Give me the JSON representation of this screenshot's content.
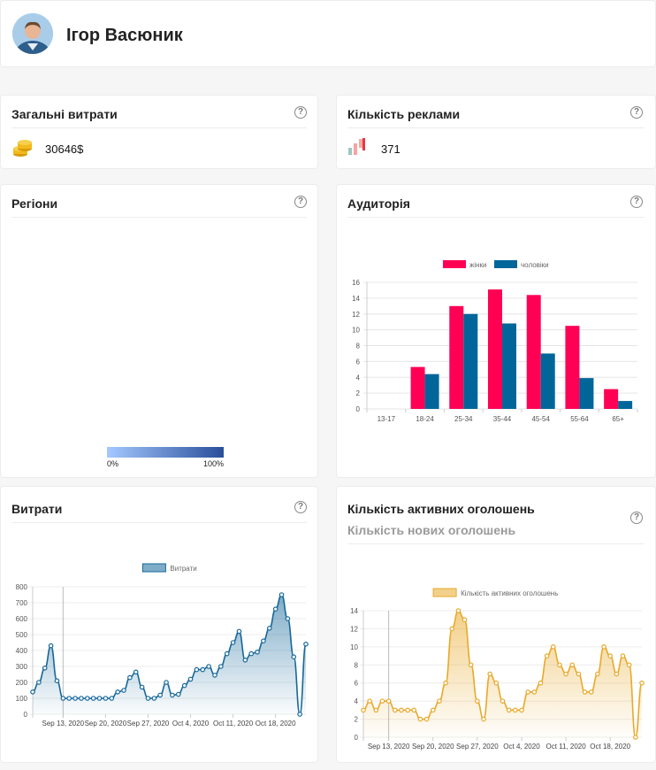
{
  "profile": {
    "name": "Ігор Васюник",
    "avatar_icon": "person-photo-icon"
  },
  "spend_card": {
    "title": "Загальні витрати",
    "value": "30646$",
    "icon": "coins-icon",
    "help_glyph": "?"
  },
  "ads_card": {
    "title": "Кількість реклами",
    "value": "371",
    "icon": "ads-chart-icon",
    "help_glyph": "?"
  },
  "regions_card": {
    "title": "Регіони",
    "help_glyph": "?",
    "legend_min": "0%",
    "legend_max": "100%",
    "colors": {
      "low": "#a4c8ff",
      "high": "#2a4f9a",
      "crimea": "#d9d9d9"
    }
  },
  "audience_card": {
    "title": "Аудиторія",
    "help_glyph": "?"
  },
  "spend_chart_card": {
    "title": "Витрати",
    "help_glyph": "?"
  },
  "active_ads_card": {
    "title": "Кількість активних оголошень",
    "subtitle": "Кількість нових оголошень",
    "help_glyph": "?"
  },
  "chart_data": [
    {
      "type": "bar",
      "categories": [
        "13-17",
        "18-24",
        "25-34",
        "35-44",
        "45-54",
        "55-64",
        "65+"
      ],
      "series": [
        {
          "name": "жінки",
          "color": "#ff0055",
          "values": [
            0,
            5.3,
            13,
            15.1,
            14.4,
            10.5,
            2.5
          ]
        },
        {
          "name": "чоловіки",
          "color": "#006699",
          "values": [
            0,
            4.4,
            12,
            10.8,
            7,
            3.9,
            1
          ]
        }
      ],
      "yticks": [
        0,
        2,
        4,
        6,
        8,
        10,
        12,
        14,
        16
      ],
      "ylim": [
        0,
        16
      ],
      "legend": "top"
    },
    {
      "type": "area",
      "series": [
        {
          "name": "Витрати",
          "color": "#16689a"
        }
      ],
      "values": [
        140,
        200,
        290,
        430,
        210,
        100,
        100,
        100,
        100,
        100,
        100,
        100,
        100,
        100,
        140,
        150,
        230,
        265,
        170,
        100,
        100,
        120,
        200,
        120,
        125,
        180,
        220,
        280,
        280,
        300,
        245,
        300,
        380,
        450,
        520,
        340,
        380,
        390,
        460,
        540,
        660,
        750,
        600,
        360,
        0,
        440
      ],
      "xticks": [
        {
          "label": "Sep 13, 2020",
          "index": 5
        },
        {
          "label": "Sep 20, 2020",
          "index": 12
        },
        {
          "label": "Sep 27, 2020",
          "index": 19
        },
        {
          "label": "Oct 4, 2020",
          "index": 26
        },
        {
          "label": "Oct 11, 2020",
          "index": 33
        },
        {
          "label": "Oct 18, 2020",
          "index": 40
        }
      ],
      "yticks": [
        0,
        100,
        200,
        300,
        400,
        500,
        600,
        700,
        800
      ],
      "ylim": [
        0,
        800
      ],
      "legend": "top"
    },
    {
      "type": "area",
      "series": [
        {
          "name": "Кількість активних оголошень",
          "color": "#e8a92a"
        }
      ],
      "values": [
        3,
        4,
        3,
        4,
        4,
        3,
        3,
        3,
        3,
        2,
        2,
        3,
        4,
        6,
        12,
        14,
        13,
        8,
        4,
        2,
        7,
        6,
        4,
        3,
        3,
        3,
        5,
        5,
        6,
        9,
        10,
        8,
        7,
        8,
        7,
        5,
        5,
        7,
        10,
        9,
        7,
        9,
        8,
        0,
        6
      ],
      "xticks": [
        {
          "label": "Sep 13, 2020",
          "index": 4
        },
        {
          "label": "Sep 20, 2020",
          "index": 11
        },
        {
          "label": "Sep 27, 2020",
          "index": 18
        },
        {
          "label": "Oct 4, 2020",
          "index": 25
        },
        {
          "label": "Oct 11, 2020",
          "index": 32
        },
        {
          "label": "Oct 18, 2020",
          "index": 39
        }
      ],
      "yticks": [
        0,
        2,
        4,
        6,
        8,
        10,
        12,
        14
      ],
      "ylim": [
        0,
        14
      ],
      "legend": "top"
    }
  ]
}
